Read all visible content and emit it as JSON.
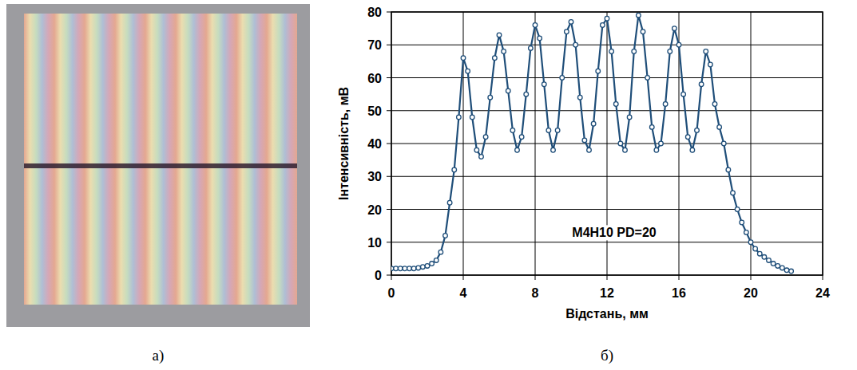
{
  "chart_data": {
    "type": "line",
    "x_label": "Відстань, мм",
    "y_label": "Інтенсивність, мВ",
    "annotation": "M4H10 PD=20",
    "x": [
      0,
      0.25,
      0.5,
      0.75,
      1,
      1.25,
      1.5,
      1.75,
      2,
      2.25,
      2.5,
      2.75,
      3,
      3.25,
      3.5,
      3.75,
      4,
      4.25,
      4.5,
      4.75,
      5,
      5.25,
      5.5,
      5.75,
      6,
      6.25,
      6.5,
      6.75,
      7,
      7.25,
      7.5,
      7.75,
      8,
      8.25,
      8.5,
      8.75,
      9,
      9.25,
      9.5,
      9.75,
      10,
      10.25,
      10.5,
      10.75,
      11,
      11.25,
      11.5,
      11.75,
      12,
      12.25,
      12.5,
      12.75,
      13,
      13.25,
      13.5,
      13.75,
      14,
      14.25,
      14.5,
      14.75,
      15,
      15.25,
      15.5,
      15.75,
      16,
      16.25,
      16.5,
      16.75,
      17,
      17.25,
      17.5,
      17.75,
      18,
      18.25,
      18.5,
      18.75,
      19,
      19.25,
      19.5,
      19.75,
      20,
      20.25,
      20.5,
      20.75,
      21,
      21.25,
      21.5,
      21.75,
      22,
      22.25
    ],
    "values": [
      2,
      2,
      2,
      2,
      2,
      2,
      2.2,
      2.5,
      2.8,
      3.5,
      4.5,
      7,
      12,
      22,
      32,
      48,
      66,
      62,
      48,
      38,
      36,
      42,
      54,
      66,
      73,
      68,
      56,
      44,
      38,
      42,
      55,
      69,
      76,
      72,
      58,
      44,
      38,
      44,
      60,
      74,
      77,
      70,
      54,
      41,
      38,
      46,
      62,
      76,
      78,
      68,
      52,
      40,
      38,
      48,
      68,
      79,
      74,
      60,
      45,
      38,
      40,
      52,
      68,
      75,
      70,
      55,
      42,
      38,
      44,
      58,
      68,
      64,
      52,
      45,
      40,
      32,
      25,
      20,
      16,
      13,
      10,
      8,
      6.5,
      5.5,
      4.5,
      3.5,
      2.8,
      2.2,
      1.5,
      1.2
    ],
    "color": "#1f4e79",
    "marker": "circle",
    "xlim": [
      0,
      24
    ],
    "xticks": [
      0,
      4,
      8,
      12,
      16,
      20,
      24
    ],
    "ylim": [
      0,
      80
    ],
    "yticks": [
      0,
      10,
      20,
      30,
      40,
      50,
      60,
      70,
      80
    ],
    "grid": true
  },
  "panels": {
    "photo_label": "а)",
    "chart_label": "б)"
  }
}
